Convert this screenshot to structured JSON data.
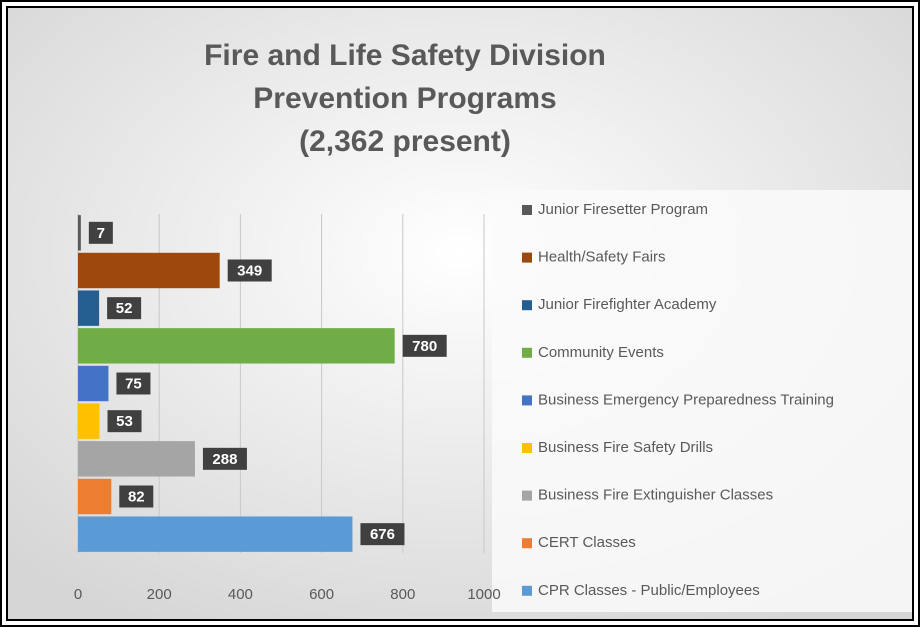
{
  "chart_data": {
    "type": "bar",
    "orientation": "horizontal",
    "title": [
      "Fire and Life Safety Division",
      "Prevention Programs",
      "(2,362 present)"
    ],
    "series": [
      {
        "name": "Junior Firesetter Program",
        "color": "#595959",
        "values": [
          7
        ]
      },
      {
        "name": "Health/Safety Fairs",
        "color": "#9e480e",
        "values": [
          349
        ]
      },
      {
        "name": "Junior Firefighter Academy",
        "color": "#255e91",
        "values": [
          52
        ]
      },
      {
        "name": "Community Events",
        "color": "#70ad47",
        "values": [
          780
        ]
      },
      {
        "name": "Business Emergency Preparedness Training",
        "color": "#4472c4",
        "values": [
          75
        ]
      },
      {
        "name": "Business Fire Safety Drills",
        "color": "#ffc000",
        "values": [
          53
        ]
      },
      {
        "name": "Business Fire Extinguisher Classes",
        "color": "#a5a5a5",
        "values": [
          288
        ]
      },
      {
        "name": "CERT Classes",
        "color": "#ed7d31",
        "values": [
          82
        ]
      },
      {
        "name": "CPR Classes - Public/Employees",
        "color": "#5b9bd5",
        "values": [
          676
        ]
      }
    ],
    "xlim": [
      0,
      1000
    ],
    "xticks": [
      0,
      200,
      400,
      600,
      800,
      1000
    ],
    "grid": true,
    "legend": "right"
  }
}
